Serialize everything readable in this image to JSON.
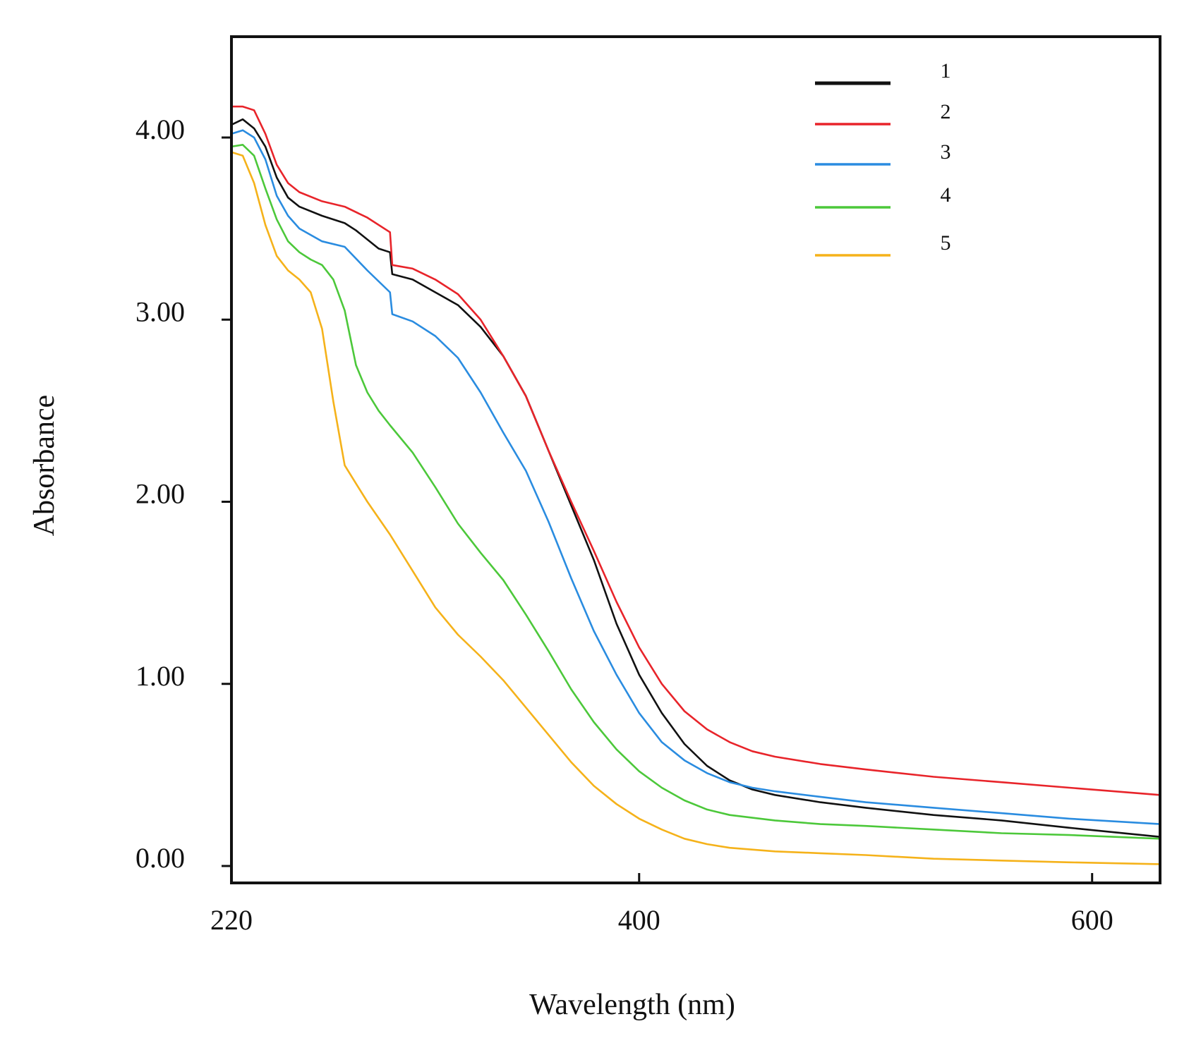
{
  "chart_data": {
    "type": "line",
    "title": "",
    "xlabel": "Wavelength (nm)",
    "ylabel": "Absorbance",
    "xlim": [
      220,
      630
    ],
    "ylim": [
      0,
      4.5
    ],
    "x_ticks": [
      220,
      400,
      600
    ],
    "x_tick_labels": [
      "220",
      "400",
      "600"
    ],
    "y_ticks": [
      0,
      1,
      2,
      3,
      4
    ],
    "y_tick_labels": [
      "0.00",
      "1.00",
      "2.00",
      "3.00",
      "4.00"
    ],
    "legend_position": "top-right",
    "grid": false,
    "series": [
      {
        "name": "1",
        "color": "#111111",
        "points": [
          [
            220,
            4.07
          ],
          [
            225,
            4.1
          ],
          [
            230,
            4.05
          ],
          [
            235,
            3.95
          ],
          [
            240,
            3.78
          ],
          [
            245,
            3.67
          ],
          [
            250,
            3.62
          ],
          [
            260,
            3.57
          ],
          [
            270,
            3.53
          ],
          [
            275,
            3.49
          ],
          [
            285,
            3.39
          ],
          [
            290,
            3.37
          ],
          [
            291,
            3.25
          ],
          [
            300,
            3.22
          ],
          [
            310,
            3.15
          ],
          [
            320,
            3.08
          ],
          [
            330,
            2.96
          ],
          [
            340,
            2.8
          ],
          [
            350,
            2.58
          ],
          [
            360,
            2.28
          ],
          [
            370,
            1.98
          ],
          [
            380,
            1.68
          ],
          [
            390,
            1.33
          ],
          [
            400,
            1.05
          ],
          [
            410,
            0.84
          ],
          [
            420,
            0.67
          ],
          [
            430,
            0.55
          ],
          [
            440,
            0.47
          ],
          [
            450,
            0.42
          ],
          [
            460,
            0.39
          ],
          [
            480,
            0.35
          ],
          [
            500,
            0.32
          ],
          [
            530,
            0.28
          ],
          [
            560,
            0.25
          ],
          [
            590,
            0.21
          ],
          [
            630,
            0.16
          ]
        ]
      },
      {
        "name": "2",
        "color": "#e8242a",
        "points": [
          [
            220,
            4.17
          ],
          [
            225,
            4.17
          ],
          [
            230,
            4.15
          ],
          [
            235,
            4.02
          ],
          [
            240,
            3.85
          ],
          [
            245,
            3.75
          ],
          [
            250,
            3.7
          ],
          [
            260,
            3.65
          ],
          [
            270,
            3.62
          ],
          [
            280,
            3.56
          ],
          [
            290,
            3.48
          ],
          [
            291,
            3.3
          ],
          [
            300,
            3.28
          ],
          [
            310,
            3.22
          ],
          [
            320,
            3.14
          ],
          [
            330,
            3.0
          ],
          [
            340,
            2.8
          ],
          [
            350,
            2.58
          ],
          [
            360,
            2.28
          ],
          [
            370,
            2.0
          ],
          [
            380,
            1.73
          ],
          [
            390,
            1.45
          ],
          [
            400,
            1.2
          ],
          [
            410,
            1.0
          ],
          [
            420,
            0.85
          ],
          [
            430,
            0.75
          ],
          [
            440,
            0.68
          ],
          [
            450,
            0.63
          ],
          [
            460,
            0.6
          ],
          [
            480,
            0.56
          ],
          [
            500,
            0.53
          ],
          [
            530,
            0.49
          ],
          [
            560,
            0.46
          ],
          [
            590,
            0.43
          ],
          [
            630,
            0.39
          ]
        ]
      },
      {
        "name": "3",
        "color": "#2a8ce0",
        "points": [
          [
            220,
            4.02
          ],
          [
            225,
            4.04
          ],
          [
            230,
            4.0
          ],
          [
            235,
            3.88
          ],
          [
            240,
            3.68
          ],
          [
            245,
            3.57
          ],
          [
            250,
            3.5
          ],
          [
            260,
            3.43
          ],
          [
            270,
            3.4
          ],
          [
            280,
            3.27
          ],
          [
            290,
            3.15
          ],
          [
            291,
            3.03
          ],
          [
            300,
            2.99
          ],
          [
            310,
            2.91
          ],
          [
            320,
            2.79
          ],
          [
            330,
            2.6
          ],
          [
            340,
            2.38
          ],
          [
            350,
            2.17
          ],
          [
            360,
            1.89
          ],
          [
            370,
            1.58
          ],
          [
            380,
            1.29
          ],
          [
            390,
            1.05
          ],
          [
            400,
            0.84
          ],
          [
            410,
            0.68
          ],
          [
            420,
            0.58
          ],
          [
            430,
            0.51
          ],
          [
            440,
            0.46
          ],
          [
            450,
            0.43
          ],
          [
            460,
            0.41
          ],
          [
            480,
            0.38
          ],
          [
            500,
            0.35
          ],
          [
            530,
            0.32
          ],
          [
            560,
            0.29
          ],
          [
            590,
            0.26
          ],
          [
            630,
            0.23
          ]
        ]
      },
      {
        "name": "4",
        "color": "#4cc83a",
        "points": [
          [
            220,
            3.95
          ],
          [
            225,
            3.96
          ],
          [
            230,
            3.9
          ],
          [
            235,
            3.72
          ],
          [
            240,
            3.55
          ],
          [
            245,
            3.43
          ],
          [
            250,
            3.37
          ],
          [
            255,
            3.33
          ],
          [
            260,
            3.3
          ],
          [
            265,
            3.22
          ],
          [
            270,
            3.05
          ],
          [
            275,
            2.75
          ],
          [
            280,
            2.6
          ],
          [
            285,
            2.5
          ],
          [
            290,
            2.42
          ],
          [
            300,
            2.27
          ],
          [
            310,
            2.08
          ],
          [
            320,
            1.88
          ],
          [
            330,
            1.72
          ],
          [
            340,
            1.57
          ],
          [
            350,
            1.38
          ],
          [
            360,
            1.18
          ],
          [
            370,
            0.97
          ],
          [
            380,
            0.79
          ],
          [
            390,
            0.64
          ],
          [
            400,
            0.52
          ],
          [
            410,
            0.43
          ],
          [
            420,
            0.36
          ],
          [
            430,
            0.31
          ],
          [
            440,
            0.28
          ],
          [
            460,
            0.25
          ],
          [
            480,
            0.23
          ],
          [
            500,
            0.22
          ],
          [
            530,
            0.2
          ],
          [
            560,
            0.18
          ],
          [
            590,
            0.17
          ],
          [
            630,
            0.15
          ]
        ]
      },
      {
        "name": "5",
        "color": "#f5b21a",
        "points": [
          [
            220,
            3.92
          ],
          [
            225,
            3.9
          ],
          [
            230,
            3.75
          ],
          [
            235,
            3.52
          ],
          [
            240,
            3.35
          ],
          [
            245,
            3.27
          ],
          [
            250,
            3.22
          ],
          [
            255,
            3.15
          ],
          [
            260,
            2.95
          ],
          [
            265,
            2.55
          ],
          [
            270,
            2.2
          ],
          [
            275,
            2.1
          ],
          [
            280,
            2.0
          ],
          [
            290,
            1.82
          ],
          [
            300,
            1.62
          ],
          [
            310,
            1.42
          ],
          [
            320,
            1.27
          ],
          [
            330,
            1.15
          ],
          [
            340,
            1.02
          ],
          [
            350,
            0.87
          ],
          [
            360,
            0.72
          ],
          [
            370,
            0.57
          ],
          [
            380,
            0.44
          ],
          [
            390,
            0.34
          ],
          [
            400,
            0.26
          ],
          [
            410,
            0.2
          ],
          [
            420,
            0.15
          ],
          [
            430,
            0.12
          ],
          [
            440,
            0.1
          ],
          [
            460,
            0.08
          ],
          [
            480,
            0.07
          ],
          [
            500,
            0.06
          ],
          [
            530,
            0.04
          ],
          [
            560,
            0.03
          ],
          [
            590,
            0.02
          ],
          [
            630,
            0.01
          ]
        ]
      }
    ]
  }
}
